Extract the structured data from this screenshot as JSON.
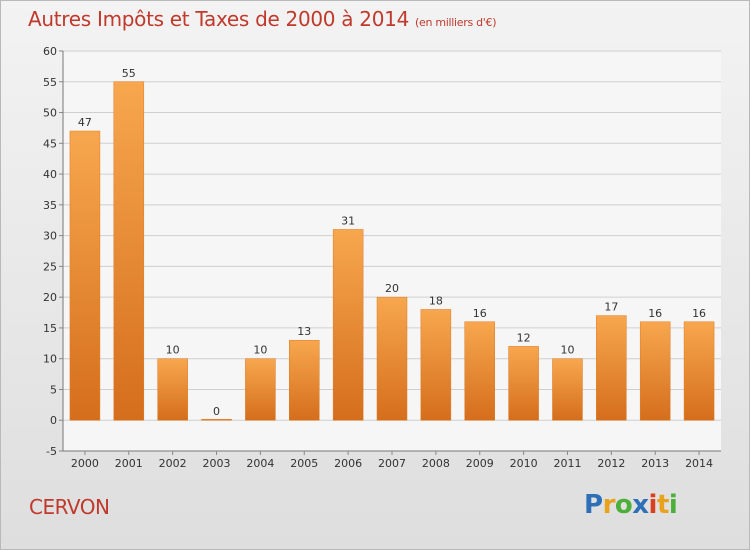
{
  "title": "Autres Impôts et Taxes de 2000 à 2014",
  "unit_label": "(en milliers d'€)",
  "commune": "CERVON",
  "logo": {
    "letters": [
      "P",
      "r",
      "o",
      "x",
      "i",
      "t",
      "i"
    ],
    "colors": [
      "#2f6fb7",
      "#e8a21c",
      "#4caf3a",
      "#2f6fb7",
      "#d9401f",
      "#e8a21c",
      "#4caf3a"
    ]
  },
  "colors": {
    "title": "#c0392b",
    "bar_light": "#f7a74f",
    "bar_dark": "#d56e1c"
  },
  "chart_data": {
    "type": "bar",
    "title": "Autres Impôts et Taxes de 2000 à 2014",
    "subtitle": "(en milliers d'€)",
    "categories": [
      "2000",
      "2001",
      "2002",
      "2003",
      "2004",
      "2005",
      "2006",
      "2007",
      "2008",
      "2009",
      "2010",
      "2011",
      "2012",
      "2013",
      "2014"
    ],
    "values": [
      47,
      55,
      10,
      0,
      10,
      13,
      31,
      20,
      18,
      16,
      12,
      10,
      17,
      16,
      16
    ],
    "ylim": [
      -5,
      60
    ],
    "yticks": [
      -5,
      0,
      5,
      10,
      15,
      20,
      25,
      30,
      35,
      40,
      45,
      50,
      55,
      60
    ],
    "grid": true,
    "legend": "none"
  }
}
